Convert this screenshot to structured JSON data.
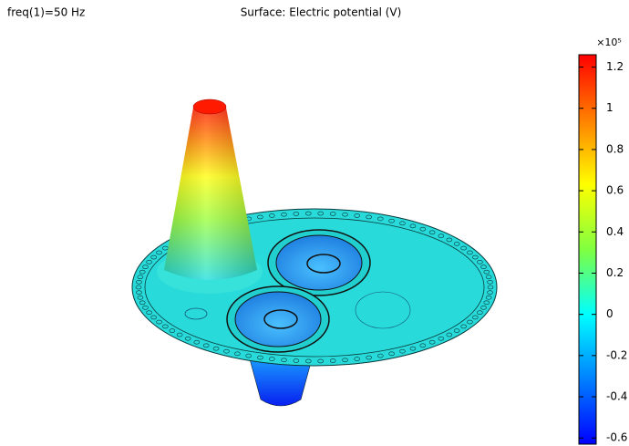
{
  "chart_data": {
    "type": "surface",
    "title": "Surface: Electric potential (V)",
    "annotation": "freq(1)=50 Hz",
    "colorbar_multiplier": "×10⁵",
    "clim": [
      -0.63,
      1.26
    ],
    "cticks": [
      -0.6,
      -0.4,
      -0.2,
      0,
      0.2,
      0.4,
      0.6,
      0.8,
      1,
      1.2
    ],
    "colormap": [
      "#0000ff",
      "#0080ff",
      "#00ffff",
      "#80ff40",
      "#ffff00",
      "#ff8000",
      "#ff0000"
    ]
  }
}
